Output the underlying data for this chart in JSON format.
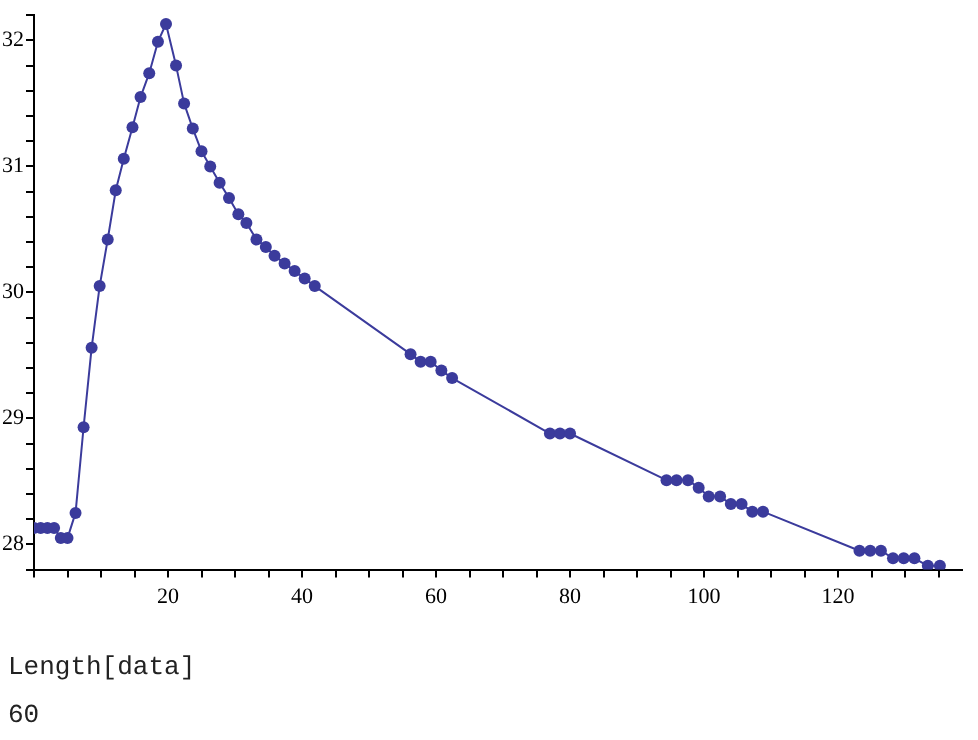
{
  "chart_data": {
    "type": "line",
    "marker": "circle",
    "line_style": "solid",
    "x": [
      0,
      1,
      2,
      3,
      4,
      5,
      6.2,
      7.4,
      8.6,
      9.8,
      11,
      12.2,
      13.4,
      14.7,
      15.9,
      17.2,
      18.5,
      19.7,
      21.2,
      22.4,
      23.7,
      25,
      26.3,
      27.7,
      29.1,
      30.5,
      31.7,
      33.2,
      34.6,
      35.9,
      37.4,
      38.9,
      40.4,
      41.9,
      56.2,
      57.7,
      59.2,
      60.8,
      62.4,
      77,
      78.5,
      80,
      94.4,
      95.9,
      97.6,
      99.2,
      100.7,
      102.4,
      104,
      105.6,
      107.2,
      108.8,
      123.2,
      124.8,
      126.4,
      128.2,
      129.8,
      131.4,
      133.4,
      135.2
    ],
    "series": [
      {
        "color": "#3b3b9c",
        "values": [
          28.13,
          28.13,
          28.13,
          28.13,
          28.05,
          28.05,
          28.25,
          28.93,
          29.56,
          30.05,
          30.42,
          30.81,
          31.06,
          31.31,
          31.55,
          31.74,
          31.99,
          32.13,
          31.8,
          31.5,
          31.3,
          31.12,
          31.0,
          30.87,
          30.75,
          30.62,
          30.55,
          30.42,
          30.36,
          30.29,
          30.23,
          30.17,
          30.11,
          30.05,
          29.51,
          29.45,
          29.45,
          29.38,
          29.32,
          28.88,
          28.88,
          28.88,
          28.51,
          28.51,
          28.51,
          28.45,
          28.38,
          28.38,
          28.32,
          28.32,
          28.26,
          28.26,
          27.95,
          27.95,
          27.95,
          27.89,
          27.89,
          27.89,
          27.83,
          27.83
        ]
      }
    ],
    "xlim": [
      0,
      138.5
    ],
    "ylim": [
      27.8,
      32.2
    ],
    "xticks": [
      {
        "value": 0,
        "label": null
      },
      {
        "value": 5,
        "label": null
      },
      {
        "value": 10,
        "label": null
      },
      {
        "value": 15,
        "label": null
      },
      20,
      {
        "value": 25,
        "label": null
      },
      {
        "value": 30,
        "label": null
      },
      {
        "value": 35,
        "label": null
      },
      40,
      {
        "value": 45,
        "label": null
      },
      {
        "value": 50,
        "label": null
      },
      {
        "value": 55,
        "label": null
      },
      60,
      {
        "value": 65,
        "label": null
      },
      {
        "value": 70,
        "label": null
      },
      {
        "value": 75,
        "label": null
      },
      80,
      {
        "value": 85,
        "label": null
      },
      {
        "value": 90,
        "label": null
      },
      {
        "value": 95,
        "label": null
      },
      100,
      {
        "value": 105,
        "label": null
      },
      {
        "value": 110,
        "label": null
      },
      {
        "value": 115,
        "label": null
      },
      120,
      {
        "value": 125,
        "label": null
      },
      {
        "value": 130,
        "label": null
      },
      {
        "value": 135,
        "label": null
      }
    ],
    "yticks": [
      {
        "value": 27.8,
        "label": null
      },
      28,
      {
        "value": 28.2,
        "label": null
      },
      {
        "value": 28.4,
        "label": null
      },
      {
        "value": 28.6,
        "label": null
      },
      {
        "value": 28.8,
        "label": null
      },
      29,
      {
        "value": 29.2,
        "label": null
      },
      {
        "value": 29.4,
        "label": null
      },
      {
        "value": 29.6,
        "label": null
      },
      {
        "value": 29.8,
        "label": null
      },
      30,
      {
        "value": 30.2,
        "label": null
      },
      {
        "value": 30.4,
        "label": null
      },
      {
        "value": 30.6,
        "label": null
      },
      {
        "value": 30.8,
        "label": null
      },
      31,
      {
        "value": 31.2,
        "label": null
      },
      {
        "value": 31.4,
        "label": null
      },
      {
        "value": 31.6,
        "label": null
      },
      {
        "value": 31.8,
        "label": null
      },
      32,
      {
        "value": 32.2,
        "label": null
      }
    ],
    "annotations": [
      "Length[data]",
      "60"
    ]
  }
}
